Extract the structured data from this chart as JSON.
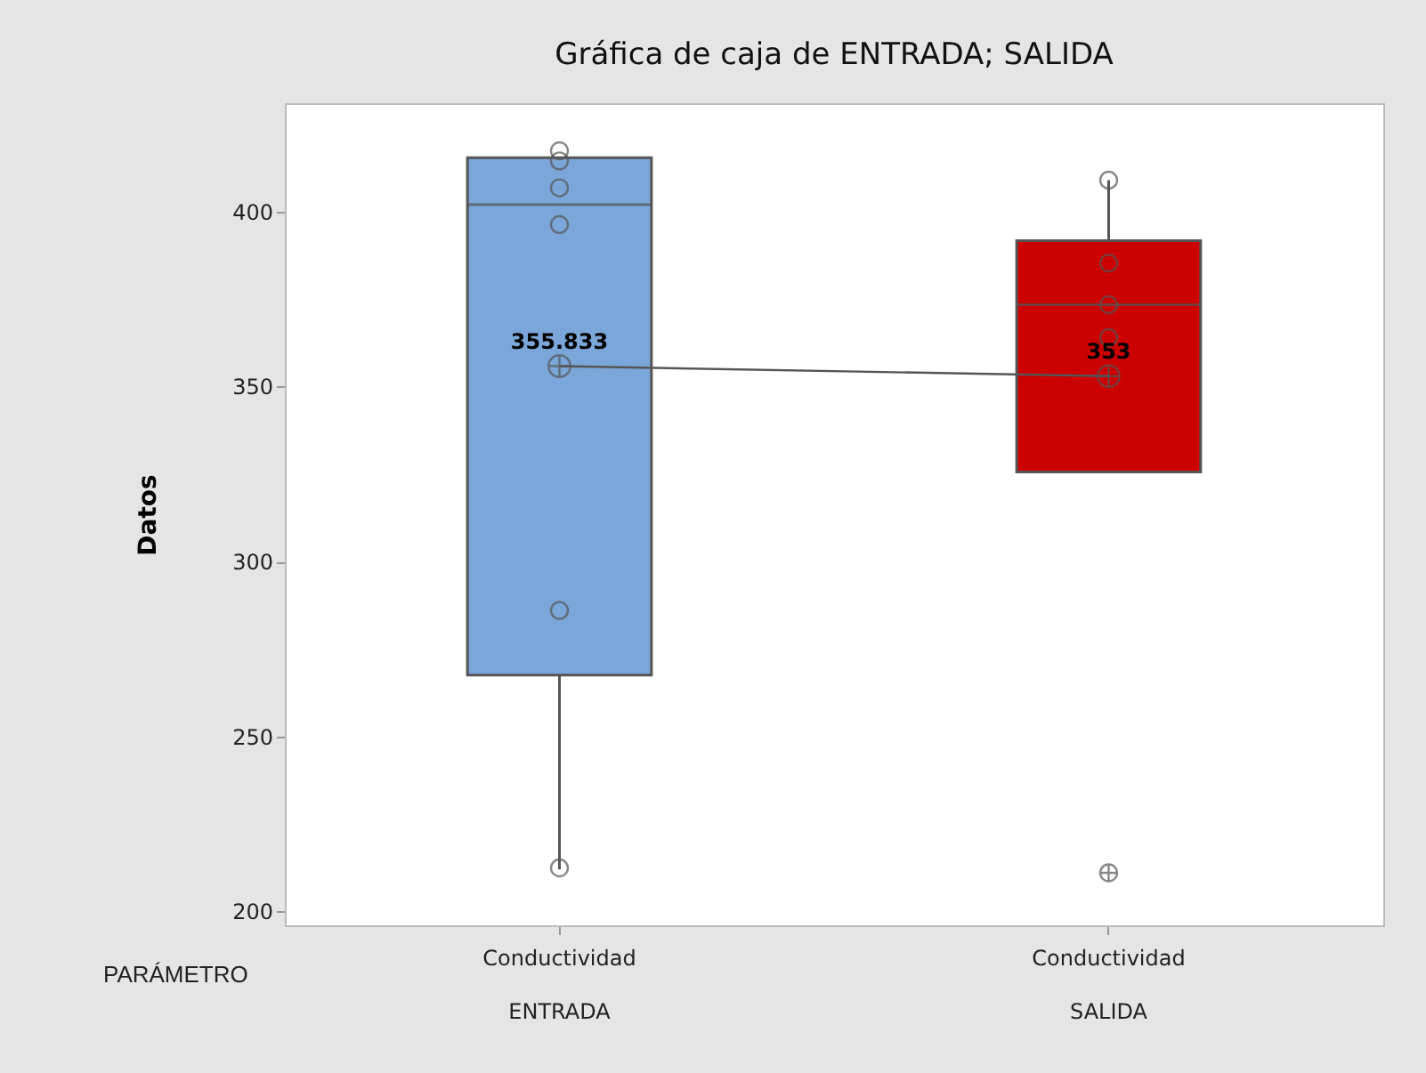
{
  "chart_data": {
    "type": "box",
    "title": "Gráfica de caja de ENTRADA; SALIDA",
    "ylabel": "Datos",
    "categories": [
      "Conductividad\nENTRADA",
      "Conductividad\nSALIDA"
    ],
    "ylim": [
      196,
      431
    ],
    "yticks": [
      200,
      250,
      300,
      350,
      400
    ],
    "grid": false,
    "legend": false,
    "annotations": [
      "PARÁMETRO"
    ],
    "series": [
      {
        "type": "box",
        "colors": [
          "#7ba6d9",
          "#cc0000"
        ],
        "boxes": [
          {
            "low": 212,
            "q1": 267.5,
            "median": 402,
            "q3": 415.4,
            "high": 415.4
          },
          {
            "low": 325.6,
            "q1": 325.6,
            "median": 373.4,
            "q3": 391.7,
            "high": 409,
            "outliers": [
              211
            ]
          }
        ]
      },
      {
        "type": "scatter",
        "color": "#555555",
        "marker": "circle",
        "x": [
          "Conductividad\nENTRADA",
          "Conductividad\nENTRADA",
          "Conductividad\nENTRADA",
          "Conductividad\nENTRADA",
          "Conductividad\nENTRADA",
          "Conductividad\nENTRADA",
          "Conductividad\nSALIDA",
          "Conductividad\nSALIDA",
          "Conductividad\nSALIDA",
          "Conductividad\nSALIDA"
        ],
        "values": [
          417.4,
          414.5,
          406.8,
          396.3,
          286,
          212.4,
          409,
          385.3,
          373.4,
          364
        ]
      },
      {
        "type": "line",
        "color": "#555555",
        "marker": "cross",
        "values": [
          355.833,
          353
        ],
        "value_labels": [
          "355.833",
          "353"
        ]
      }
    ]
  }
}
